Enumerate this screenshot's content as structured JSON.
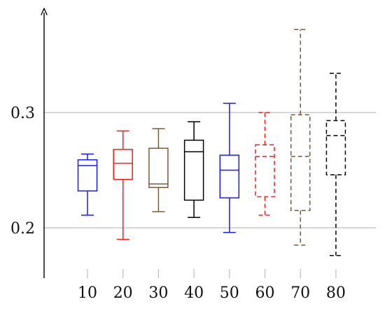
{
  "chart_data": {
    "type": "boxplot",
    "title": "",
    "xlabel": "",
    "ylabel": "",
    "categories": [
      "10",
      "20",
      "30",
      "40",
      "50",
      "60",
      "70",
      "80"
    ],
    "y_ticks": [
      {
        "value": 0.2,
        "label": "0.2"
      },
      {
        "value": 0.3,
        "label": "0.3"
      }
    ],
    "grid": "horizontal at y ticks",
    "legend": "none",
    "axis_color": "#000000",
    "grid_color": "#bdbdbd",
    "boxes": [
      {
        "category": "10",
        "whisker_low": 0.211,
        "q1": 0.232,
        "median": 0.254,
        "q3": 0.259,
        "whisker_high": 0.264,
        "color": "#1a1aff",
        "dashed": false
      },
      {
        "category": "20",
        "whisker_low": 0.19,
        "q1": 0.242,
        "median": 0.256,
        "q3": 0.268,
        "whisker_high": 0.284,
        "color": "#ff1a1a",
        "dashed": false
      },
      {
        "category": "30",
        "whisker_low": 0.214,
        "q1": 0.235,
        "median": 0.238,
        "q3": 0.269,
        "whisker_high": 0.286,
        "color": "#7a5a3a",
        "dashed": false
      },
      {
        "category": "40",
        "whisker_low": 0.209,
        "q1": 0.224,
        "median": 0.266,
        "q3": 0.276,
        "whisker_high": 0.292,
        "color": "#000000",
        "dashed": false
      },
      {
        "category": "50",
        "whisker_low": 0.196,
        "q1": 0.226,
        "median": 0.25,
        "q3": 0.263,
        "whisker_high": 0.308,
        "color": "#1a1aff",
        "dashed": false
      },
      {
        "category": "60",
        "whisker_low": 0.211,
        "q1": 0.227,
        "median": 0.262,
        "q3": 0.272,
        "whisker_high": 0.3,
        "color": "#ff1a1a",
        "dashed": true
      },
      {
        "category": "70",
        "whisker_low": 0.185,
        "q1": 0.215,
        "median": 0.262,
        "q3": 0.298,
        "whisker_high": 0.372,
        "color": "#7a5a3a",
        "dashed": true
      },
      {
        "category": "80",
        "whisker_low": 0.176,
        "q1": 0.246,
        "median": 0.28,
        "q3": 0.293,
        "whisker_high": 0.334,
        "color": "#000000",
        "dashed": true
      }
    ]
  }
}
